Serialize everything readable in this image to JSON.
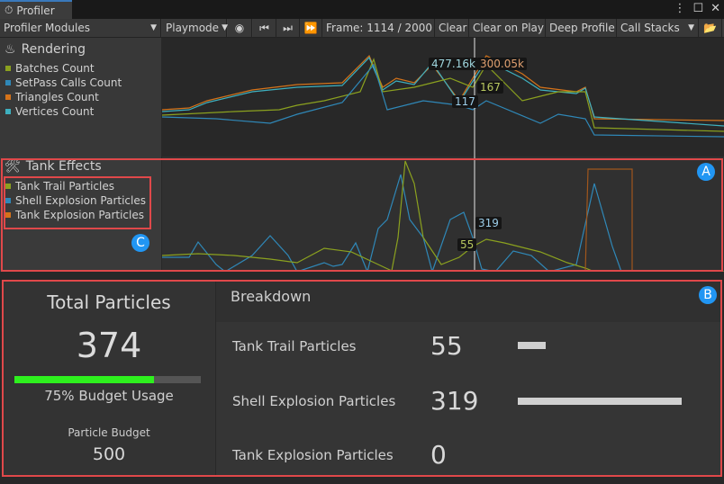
{
  "window": {
    "tab_title": "Profiler",
    "icon": "stopwatch-icon",
    "controls": [
      "more-icon",
      "maximize-icon",
      "close-icon"
    ]
  },
  "toolbar": {
    "modules": "Profiler Modules",
    "target": "Playmode",
    "frame": "Frame: 1114 / 2000",
    "clear": "Clear",
    "clear_on_play": "Clear on Play",
    "deep_profile": "Deep Profile",
    "call_stacks": "Call Stacks"
  },
  "rendering": {
    "title": "Rendering",
    "legend": [
      {
        "label": "Batches Count",
        "color": "#8ba11f"
      },
      {
        "label": "SetPass Calls Count",
        "color": "#2f88b8"
      },
      {
        "label": "Triangles Count",
        "color": "#d5731a"
      },
      {
        "label": "Vertices Count",
        "color": "#3eb0bf"
      }
    ],
    "labels": {
      "vertices": "477.16k",
      "triangles": "300.05k",
      "batches": "167",
      "setpass": "117"
    }
  },
  "tank_effects": {
    "title": "Tank Effects",
    "legend": [
      {
        "label": "Tank Trail Particles",
        "color": "#8ba11f"
      },
      {
        "label": "Shell Explosion Particles",
        "color": "#2f88b8"
      },
      {
        "label": "Tank Explosion Particles",
        "color": "#d5731a"
      }
    ],
    "labels": {
      "shell": "319",
      "trail": "55"
    }
  },
  "callouts": {
    "a": "A",
    "b": "B",
    "c": "C"
  },
  "summary": {
    "title": "Total Particles",
    "total": "374",
    "budget_usage_fraction": 0.75,
    "budget_usage": "75% Budget Usage",
    "budget_label": "Particle Budget",
    "budget": "500",
    "bar_color": "#2ef01e"
  },
  "breakdown": {
    "title": "Breakdown",
    "max": 319,
    "rows": [
      {
        "label": "Tank Trail Particles",
        "value": "55",
        "n": 55
      },
      {
        "label": "Shell Explosion Particles",
        "value": "319",
        "n": 319
      },
      {
        "label": "Tank Explosion Particles",
        "value": "0",
        "n": 0
      }
    ]
  }
}
